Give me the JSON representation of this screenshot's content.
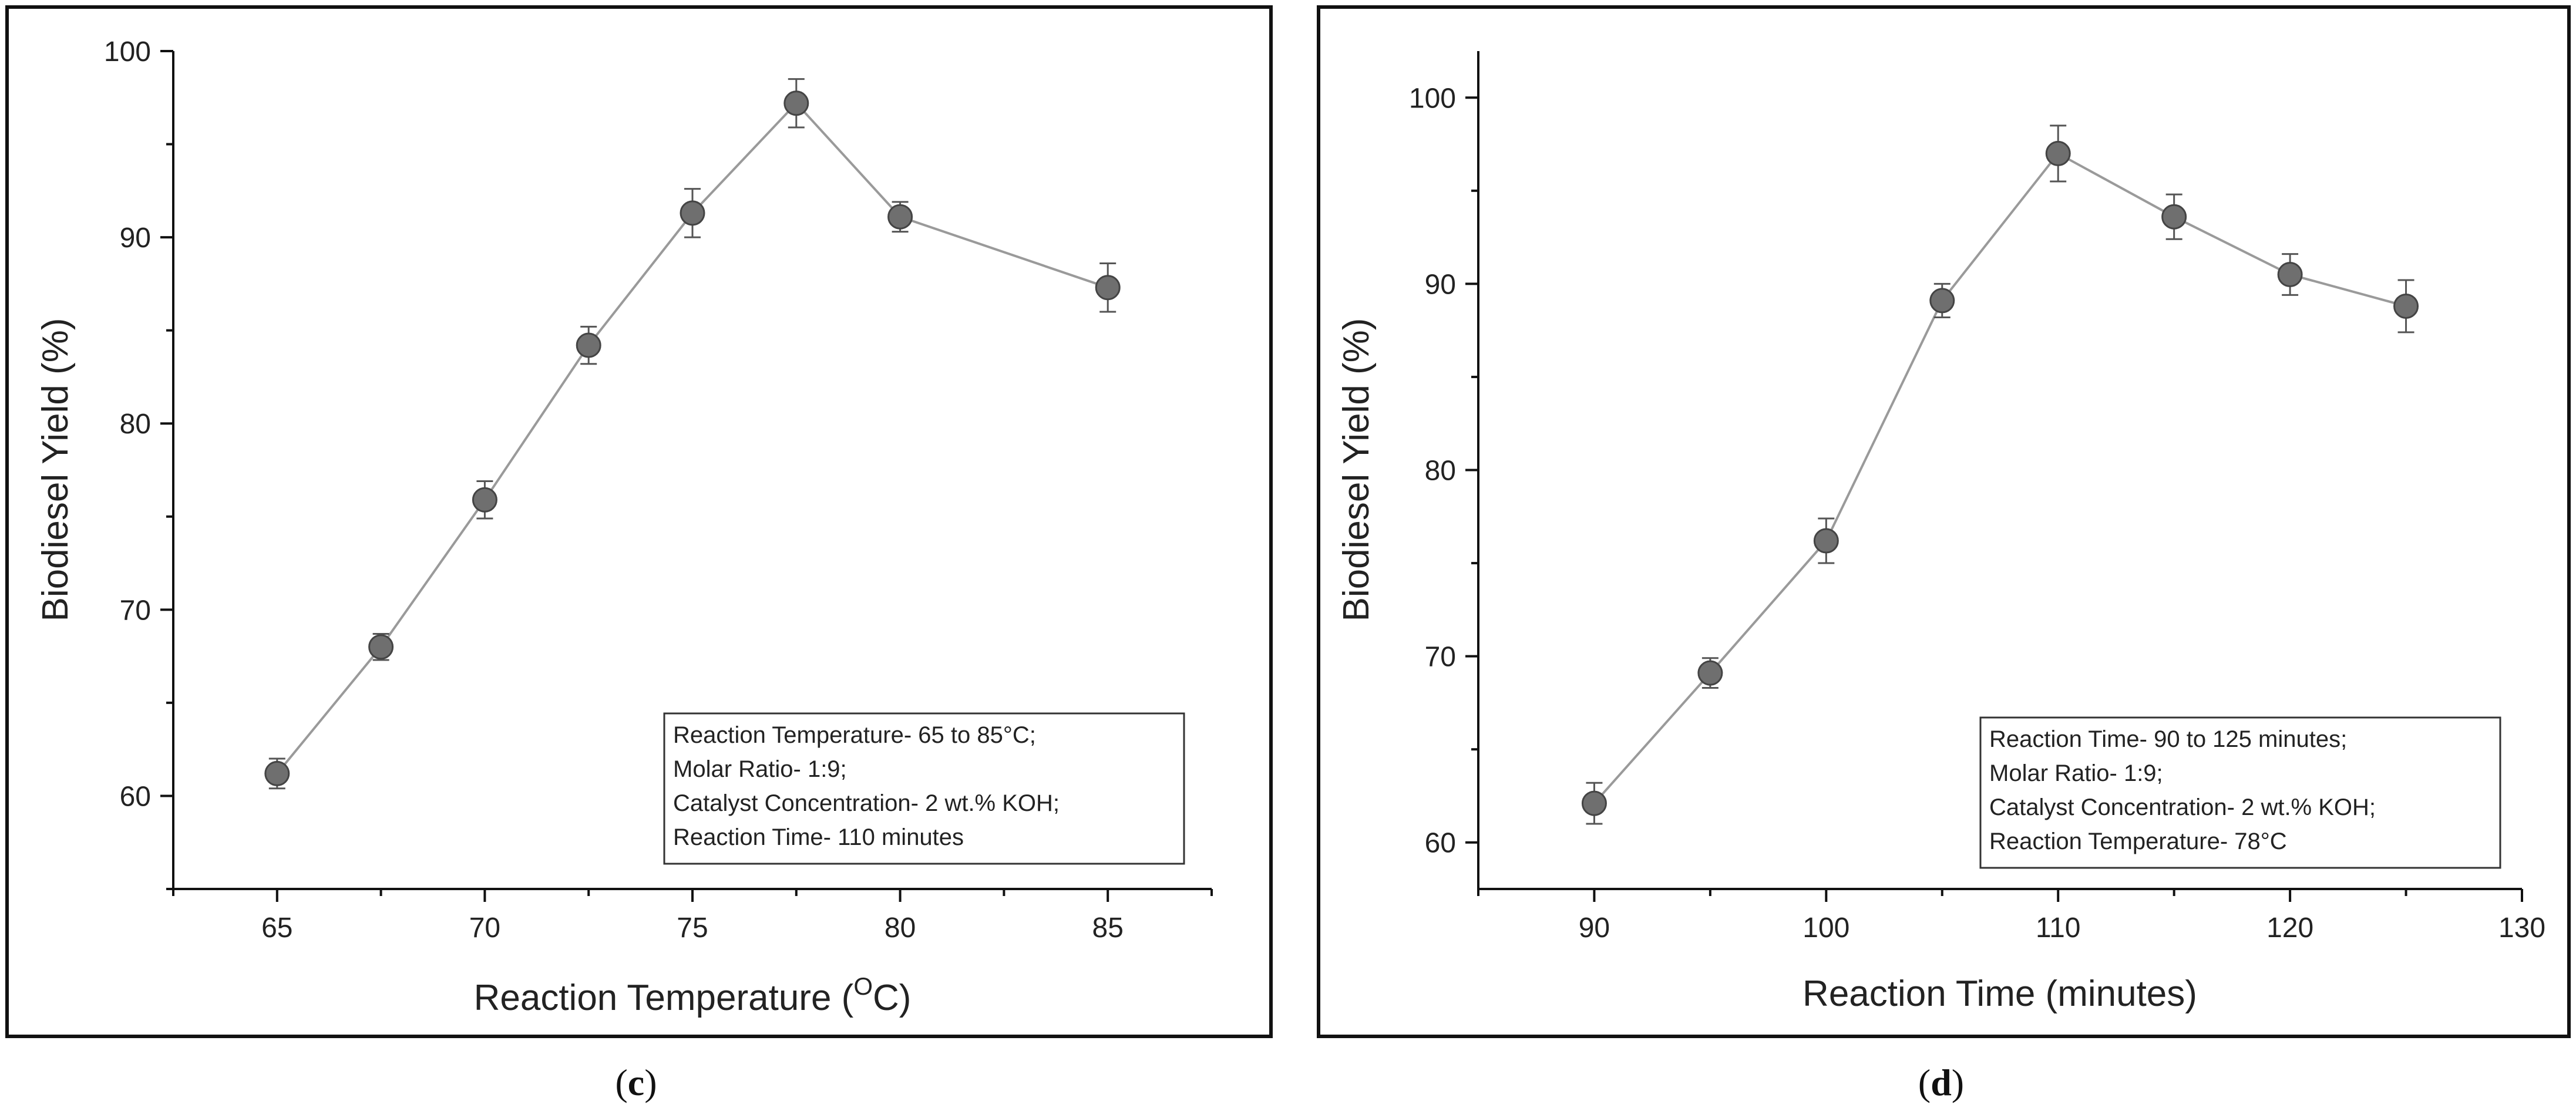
{
  "chart_data": [
    {
      "type": "line",
      "panel": "c",
      "caption_open": "(",
      "caption_letter": "c",
      "caption_close": ")",
      "xlabel": "Reaction Temperature (",
      "xlabel_superscript": "O",
      "xlabel_suffix": "C)",
      "ylabel": "Biodiesel Yield (%)",
      "xlim": [
        62.5,
        87.5
      ],
      "ylim": [
        55,
        100
      ],
      "xticks": [
        65,
        70,
        75,
        80,
        85
      ],
      "yticks": [
        60,
        70,
        80,
        90,
        100
      ],
      "series": [
        {
          "name": "Biodiesel Yield",
          "x": [
            65,
            67.5,
            70,
            72.5,
            75,
            77.5,
            80,
            85
          ],
          "y": [
            61.2,
            68.0,
            75.9,
            84.2,
            91.3,
            97.2,
            91.1,
            87.3
          ],
          "err": [
            0.8,
            0.7,
            1.0,
            1.0,
            1.3,
            1.3,
            0.8,
            1.3
          ]
        }
      ],
      "legend": [
        "Reaction Temperature- 65 to 85°C;",
        "Molar Ratio- 1:9;",
        "Catalyst Concentration- 2 wt.% KOH;",
        "Reaction Time- 110 minutes"
      ],
      "legend_position": "bottom-right"
    },
    {
      "type": "line",
      "panel": "d",
      "caption_open": "(",
      "caption_letter": "d",
      "caption_close": ")",
      "xlabel": "Reaction Time (minutes)",
      "xlabel_superscript": "",
      "xlabel_suffix": "",
      "ylabel": "Biodiesel Yield (%)",
      "xlim": [
        85,
        130
      ],
      "ylim": [
        57.5,
        102.5
      ],
      "xticks": [
        90,
        100,
        110,
        120,
        130
      ],
      "yticks": [
        60,
        70,
        80,
        90,
        100
      ],
      "series": [
        {
          "name": "Biodiesel Yield",
          "x": [
            90,
            95,
            100,
            105,
            110,
            115,
            120,
            125
          ],
          "y": [
            62.1,
            69.1,
            76.2,
            89.1,
            97.0,
            93.6,
            90.5,
            88.8
          ],
          "err": [
            1.1,
            0.8,
            1.2,
            0.9,
            1.5,
            1.2,
            1.1,
            1.4
          ]
        }
      ],
      "legend": [
        "Reaction Time- 90 to 125 minutes;",
        "Molar Ratio- 1:9;",
        "Catalyst Concentration- 2 wt.% KOH;",
        "Reaction Temperature- 78°C"
      ],
      "legend_position": "bottom-right"
    }
  ]
}
